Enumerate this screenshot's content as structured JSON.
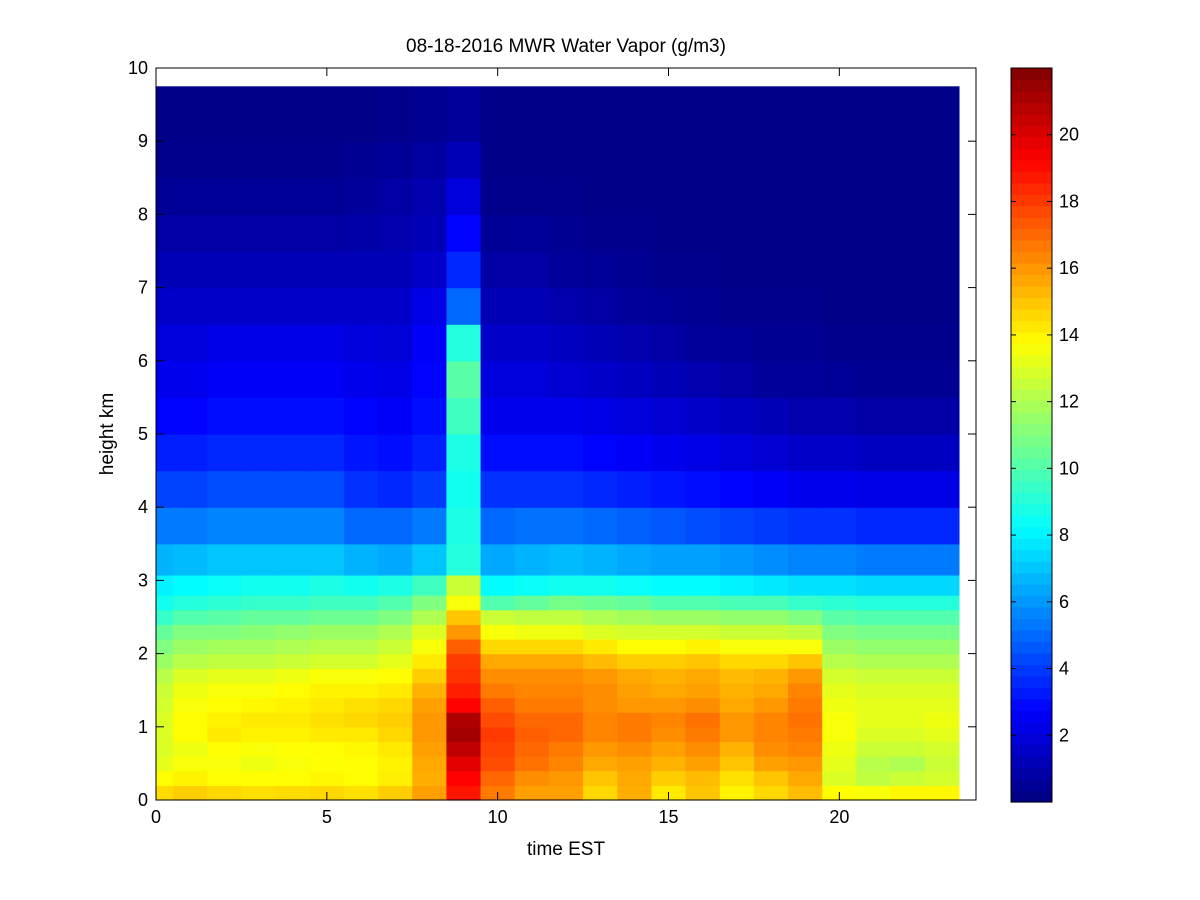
{
  "chart_data": {
    "type": "heatmap",
    "title": "08-18-2016 MWR Water Vapor (g/m3)",
    "xlabel": "time EST",
    "ylabel": "height km",
    "xlim": [
      0,
      24
    ],
    "ylim": [
      0,
      10
    ],
    "x_ticks": [
      0,
      5,
      10,
      15,
      20
    ],
    "y_ticks": [
      0,
      1,
      2,
      3,
      4,
      5,
      6,
      7,
      8,
      9,
      10
    ],
    "colorbar": {
      "colormap": "jet",
      "range": [
        0,
        22
      ],
      "ticks": [
        2,
        4,
        6,
        8,
        10,
        12,
        14,
        16,
        18,
        20
      ]
    },
    "time_hours": [
      0,
      1,
      2,
      3,
      4,
      5,
      6,
      7,
      8,
      9,
      10,
      11,
      12,
      13,
      14,
      15,
      16,
      17,
      18,
      19,
      20,
      21,
      22,
      23
    ],
    "height_km": [
      0.1,
      0.3,
      0.5,
      0.7,
      0.9,
      1.1,
      1.3,
      1.5,
      1.7,
      1.9,
      2.1,
      2.3,
      2.5,
      2.7,
      2.9,
      3.25,
      3.75,
      4.25,
      4.75,
      5.25,
      5.75,
      6.25,
      6.75,
      7.25,
      7.75,
      8.25,
      8.75,
      9.25
    ],
    "values": [
      [
        14.5,
        14.8,
        14.6,
        14.4,
        14.5,
        14.6,
        14.4,
        14.8,
        15.8,
        18.8,
        16.6,
        15.8,
        15.8,
        14.6,
        15.5,
        14.2,
        15.0,
        14.0,
        14.6,
        15.2,
        13.8,
        13.6,
        13.9,
        13.9
      ],
      [
        13.8,
        14.0,
        13.8,
        13.7,
        13.8,
        13.9,
        13.8,
        14.1,
        15.5,
        19.2,
        17.0,
        16.2,
        16.0,
        15.0,
        15.6,
        14.8,
        15.2,
        14.4,
        15.0,
        15.6,
        13.0,
        12.4,
        12.6,
        12.8
      ],
      [
        13.2,
        13.6,
        13.6,
        13.4,
        13.6,
        13.7,
        13.8,
        14.0,
        15.6,
        19.8,
        17.6,
        16.8,
        16.4,
        15.6,
        15.8,
        15.4,
        15.8,
        15.0,
        15.8,
        16.0,
        13.2,
        12.2,
        12.0,
        12.6
      ],
      [
        13.0,
        13.4,
        13.8,
        13.6,
        13.7,
        13.8,
        13.9,
        14.2,
        15.8,
        20.6,
        17.8,
        17.0,
        16.6,
        16.0,
        16.2,
        15.8,
        16.2,
        15.4,
        16.2,
        16.4,
        13.4,
        12.6,
        12.6,
        12.8
      ],
      [
        13.0,
        13.8,
        14.2,
        14.0,
        14.0,
        14.2,
        14.2,
        14.6,
        16.0,
        21.2,
        18.0,
        17.2,
        17.0,
        16.4,
        16.6,
        16.2,
        16.6,
        16.0,
        16.4,
        16.6,
        13.6,
        13.0,
        13.0,
        13.2
      ],
      [
        13.0,
        13.8,
        14.0,
        14.2,
        14.2,
        14.4,
        14.6,
        14.8,
        16.0,
        21.0,
        17.6,
        17.0,
        17.0,
        16.4,
        16.6,
        16.4,
        16.8,
        16.0,
        16.4,
        16.8,
        13.6,
        13.2,
        13.2,
        13.4
      ],
      [
        12.8,
        13.6,
        13.8,
        13.9,
        14.0,
        14.2,
        14.4,
        14.6,
        15.8,
        19.2,
        17.2,
        16.6,
        16.6,
        16.2,
        16.0,
        16.0,
        16.2,
        15.6,
        16.0,
        16.6,
        13.4,
        13.2,
        13.2,
        13.2
      ],
      [
        12.6,
        13.4,
        13.6,
        13.6,
        13.8,
        14.0,
        14.0,
        14.2,
        15.4,
        18.6,
        16.6,
        16.4,
        16.4,
        16.2,
        15.8,
        15.6,
        15.8,
        15.4,
        15.6,
        16.4,
        13.2,
        13.0,
        13.0,
        13.0
      ],
      [
        12.2,
        13.0,
        13.2,
        13.2,
        13.4,
        13.6,
        13.6,
        13.8,
        14.8,
        18.2,
        16.2,
        16.2,
        16.2,
        16.0,
        15.6,
        15.4,
        15.6,
        15.2,
        15.4,
        16.0,
        12.8,
        12.6,
        12.6,
        12.6
      ],
      [
        11.6,
        12.2,
        12.4,
        12.4,
        12.6,
        12.8,
        12.8,
        13.2,
        14.2,
        18.0,
        15.6,
        15.6,
        15.6,
        15.2,
        14.8,
        14.8,
        15.0,
        14.6,
        14.6,
        15.0,
        12.2,
        12.0,
        12.0,
        12.0
      ],
      [
        11.0,
        11.6,
        11.8,
        11.8,
        12.0,
        12.2,
        12.2,
        12.6,
        13.6,
        17.2,
        14.6,
        14.6,
        14.6,
        14.2,
        13.8,
        13.8,
        14.0,
        13.6,
        13.6,
        13.6,
        11.6,
        11.4,
        11.4,
        11.4
      ],
      [
        10.4,
        11.0,
        11.0,
        11.2,
        11.4,
        11.6,
        11.6,
        12.0,
        13.0,
        16.0,
        13.6,
        13.4,
        13.4,
        13.0,
        12.8,
        12.8,
        12.8,
        12.6,
        12.6,
        12.4,
        11.0,
        10.8,
        10.8,
        10.8
      ],
      [
        9.4,
        10.0,
        10.2,
        10.4,
        10.4,
        10.6,
        10.6,
        11.0,
        12.0,
        15.0,
        12.6,
        12.4,
        12.4,
        12.0,
        11.8,
        11.6,
        11.6,
        11.4,
        11.4,
        11.0,
        10.2,
        10.0,
        10.0,
        10.0
      ],
      [
        8.6,
        9.0,
        9.2,
        9.4,
        9.4,
        9.6,
        9.6,
        10.0,
        11.0,
        13.6,
        10.0,
        10.4,
        10.8,
        10.6,
        10.4,
        10.0,
        10.0,
        9.8,
        9.8,
        9.4,
        9.2,
        9.0,
        9.0,
        9.0
      ],
      [
        8.0,
        8.2,
        8.4,
        8.6,
        8.6,
        8.8,
        8.6,
        8.8,
        9.6,
        12.6,
        8.2,
        8.4,
        8.6,
        8.6,
        8.4,
        8.2,
        8.2,
        8.0,
        7.8,
        7.6,
        7.6,
        7.4,
        7.4,
        7.4
      ],
      [
        6.6,
        6.8,
        7.0,
        7.0,
        7.0,
        7.0,
        6.6,
        6.4,
        7.0,
        9.0,
        6.4,
        6.6,
        6.8,
        6.6,
        6.4,
        6.2,
        6.2,
        6.0,
        5.8,
        5.6,
        5.6,
        5.4,
        5.4,
        5.4
      ],
      [
        5.4,
        5.4,
        5.6,
        5.6,
        5.6,
        5.6,
        5.0,
        5.0,
        5.4,
        8.8,
        5.0,
        5.2,
        5.2,
        5.0,
        4.8,
        4.6,
        4.4,
        4.2,
        4.0,
        3.8,
        3.8,
        3.6,
        3.6,
        3.6
      ],
      [
        4.2,
        4.2,
        4.4,
        4.4,
        4.4,
        4.4,
        3.8,
        3.6,
        4.0,
        8.6,
        3.8,
        3.8,
        3.8,
        3.6,
        3.4,
        3.2,
        3.0,
        2.8,
        2.6,
        2.4,
        2.4,
        2.2,
        2.2,
        2.2
      ],
      [
        3.4,
        3.4,
        3.6,
        3.6,
        3.6,
        3.6,
        3.2,
        3.0,
        3.4,
        8.8,
        3.0,
        3.0,
        3.0,
        2.8,
        2.6,
        2.4,
        2.2,
        2.0,
        1.8,
        1.6,
        1.6,
        1.4,
        1.4,
        1.4
      ],
      [
        2.8,
        2.8,
        3.0,
        3.0,
        3.0,
        3.0,
        2.8,
        2.6,
        3.0,
        9.6,
        2.4,
        2.4,
        2.4,
        2.2,
        2.0,
        1.8,
        1.6,
        1.4,
        1.2,
        1.0,
        1.0,
        0.8,
        0.8,
        0.8
      ],
      [
        2.4,
        2.4,
        2.6,
        2.6,
        2.6,
        2.6,
        2.4,
        2.2,
        2.8,
        10.2,
        2.0,
        2.0,
        1.8,
        1.6,
        1.4,
        1.2,
        1.0,
        0.8,
        0.6,
        0.6,
        0.5,
        0.4,
        0.4,
        0.4
      ],
      [
        2.0,
        2.0,
        2.2,
        2.2,
        2.2,
        2.2,
        2.0,
        1.9,
        2.6,
        9.0,
        1.6,
        1.6,
        1.4,
        1.2,
        1.0,
        0.8,
        0.6,
        0.5,
        0.4,
        0.4,
        0.3,
        0.3,
        0.3,
        0.3
      ],
      [
        1.6,
        1.6,
        1.6,
        1.6,
        1.6,
        1.6,
        1.6,
        1.6,
        2.2,
        5.0,
        1.2,
        1.2,
        1.0,
        0.8,
        0.6,
        0.5,
        0.4,
        0.3,
        0.3,
        0.3,
        0.2,
        0.2,
        0.2,
        0.2
      ],
      [
        1.2,
        1.2,
        1.2,
        1.2,
        1.2,
        1.2,
        1.2,
        1.2,
        1.6,
        3.6,
        0.8,
        0.8,
        0.6,
        0.5,
        0.4,
        0.3,
        0.3,
        0.2,
        0.2,
        0.2,
        0.2,
        0.2,
        0.2,
        0.2
      ],
      [
        0.8,
        0.8,
        0.8,
        0.8,
        0.8,
        0.8,
        0.9,
        1.0,
        1.2,
        2.8,
        0.5,
        0.5,
        0.4,
        0.3,
        0.3,
        0.2,
        0.2,
        0.2,
        0.2,
        0.2,
        0.2,
        0.2,
        0.2,
        0.2
      ],
      [
        0.5,
        0.5,
        0.5,
        0.5,
        0.5,
        0.5,
        0.6,
        0.8,
        1.0,
        2.0,
        0.3,
        0.3,
        0.3,
        0.2,
        0.2,
        0.2,
        0.2,
        0.2,
        0.2,
        0.2,
        0.2,
        0.2,
        0.2,
        0.2
      ],
      [
        0.3,
        0.3,
        0.3,
        0.3,
        0.3,
        0.3,
        0.4,
        0.5,
        0.7,
        1.2,
        0.2,
        0.2,
        0.2,
        0.2,
        0.2,
        0.2,
        0.2,
        0.2,
        0.2,
        0.2,
        0.2,
        0.2,
        0.2,
        0.2
      ],
      [
        0.2,
        0.2,
        0.2,
        0.2,
        0.2,
        0.2,
        0.2,
        0.3,
        0.4,
        0.6,
        0.2,
        0.2,
        0.2,
        0.2,
        0.2,
        0.2,
        0.2,
        0.2,
        0.2,
        0.2,
        0.2,
        0.2,
        0.2,
        0.2
      ]
    ]
  }
}
